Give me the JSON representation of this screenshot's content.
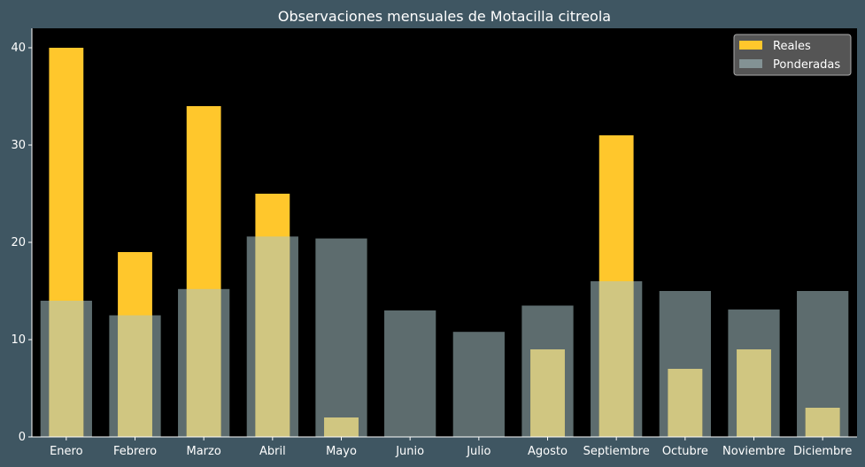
{
  "chart_data": {
    "type": "bar",
    "title": "Observaciones mensuales de Motacilla citreola",
    "xlabel": "",
    "ylabel": "",
    "categories": [
      "Enero",
      "Febrero",
      "Marzo",
      "Abril",
      "Mayo",
      "Junio",
      "Julio",
      "Agosto",
      "Septiembre",
      "Octubre",
      "Noviembre",
      "Diciembre"
    ],
    "series": [
      {
        "name": "Reales",
        "color": "#ffc72c",
        "values": [
          40,
          19,
          34,
          25,
          2,
          0,
          0,
          9,
          31,
          7,
          9,
          3
        ]
      },
      {
        "name": "Ponderadas",
        "color": "#8aa0a6",
        "values": [
          14,
          12.5,
          15.2,
          20.6,
          20.4,
          13,
          10.8,
          13.5,
          16,
          15,
          13.1,
          15
        ]
      }
    ],
    "ylim": [
      0,
      42
    ],
    "yticks": [
      0,
      10,
      20,
      30,
      40
    ],
    "grid": false,
    "legend": "top-right",
    "colors": {
      "figure_bg": "#3f5662",
      "axes_bg": "#000000",
      "text": "#ffffff"
    }
  }
}
